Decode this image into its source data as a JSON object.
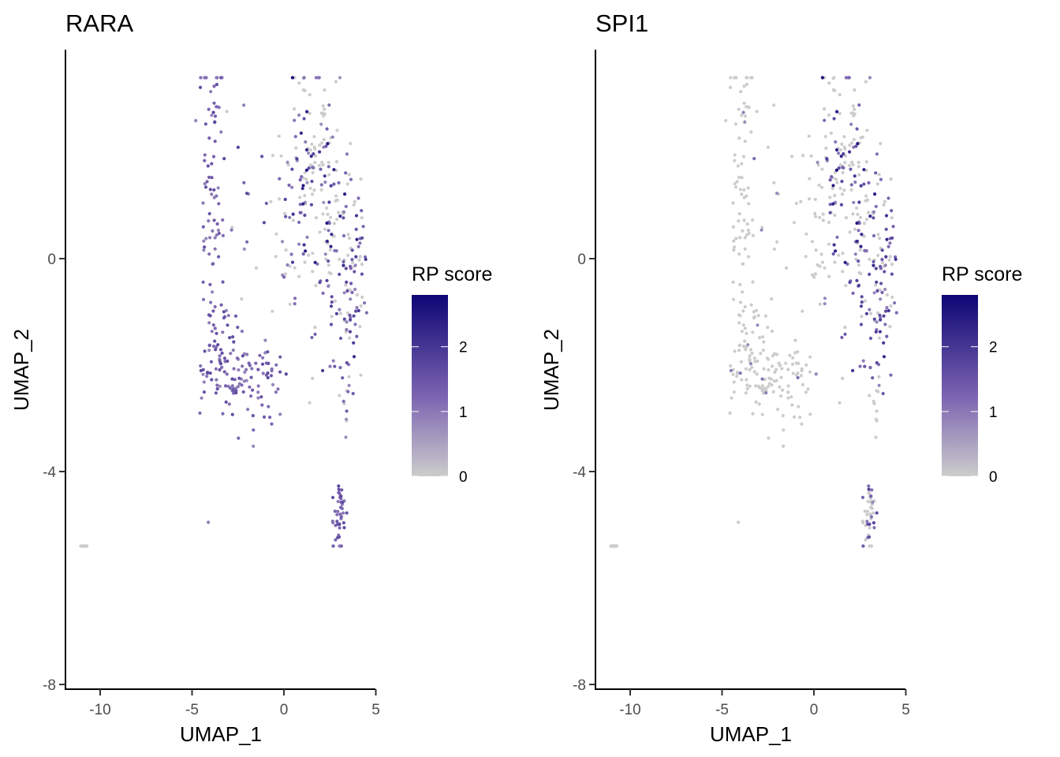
{
  "colors": {
    "low": "#cccccc",
    "mid": "#6b4ea8",
    "high": "#0d0675",
    "axis": "#000000"
  },
  "chart_data": [
    {
      "type": "scatter",
      "title": "RARA",
      "xlabel": "UMAP_1",
      "ylabel": "UMAP_2",
      "xlim": [
        -11.7,
        5.1
      ],
      "ylim": [
        -8.15,
        3.95
      ],
      "x_ticks": [
        -10,
        -5,
        0,
        5
      ],
      "y_ticks": [
        -8,
        -4,
        0
      ],
      "legend": {
        "title": "RP score",
        "ticks": [
          0,
          1,
          2
        ],
        "range": [
          0,
          2.8
        ],
        "position": "right"
      },
      "point_count": 620,
      "scores": "gene-specific RP score per cell (0 = grey, higher = darker purple)"
    },
    {
      "type": "scatter",
      "title": "SPI1",
      "xlabel": "UMAP_1",
      "ylabel": "UMAP_2",
      "xlim": [
        -11.7,
        5.1
      ],
      "ylim": [
        -8.15,
        3.95
      ],
      "x_ticks": [
        -10,
        -5,
        0,
        5
      ],
      "y_ticks": [
        -8,
        -4,
        0
      ],
      "legend": {
        "title": "RP score",
        "ticks": [
          0,
          1,
          2
        ],
        "range": [
          0,
          2.8
        ],
        "position": "right"
      },
      "point_count": 620
    }
  ]
}
